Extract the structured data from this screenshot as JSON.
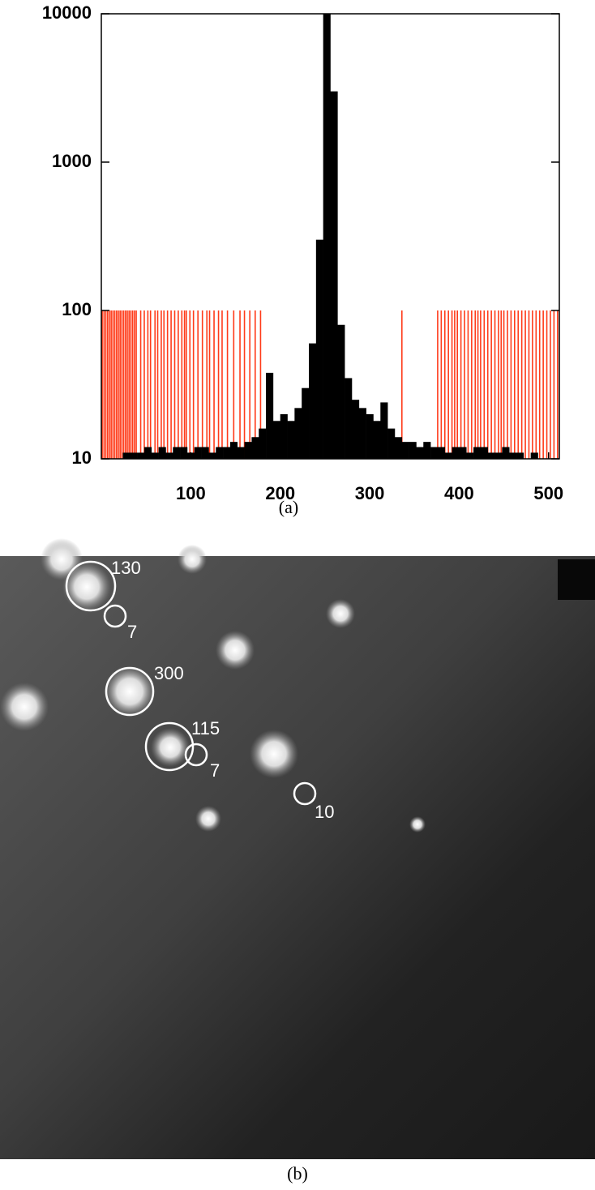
{
  "chart_data": {
    "type": "histogram",
    "bins": [
      0,
      8,
      16,
      24,
      32,
      40,
      48,
      56,
      64,
      72,
      80,
      88,
      96,
      104,
      112,
      120,
      128,
      136,
      144,
      152,
      160,
      168,
      176,
      184,
      192,
      200,
      208,
      216,
      224,
      232,
      240,
      248,
      256,
      264,
      272,
      280,
      288,
      296,
      304,
      312,
      320,
      328,
      336,
      344,
      352,
      360,
      368,
      376,
      384,
      392,
      400,
      408,
      416,
      424,
      432,
      440,
      448,
      456,
      464,
      472,
      480,
      488,
      496,
      504,
      512
    ],
    "counts": [
      10,
      10,
      10,
      11,
      11,
      11,
      12,
      11,
      12,
      11,
      12,
      12,
      11,
      12,
      12,
      11,
      12,
      12,
      13,
      12,
      13,
      14,
      16,
      38,
      18,
      20,
      18,
      22,
      30,
      60,
      300,
      10000,
      3000,
      80,
      35,
      25,
      22,
      20,
      18,
      24,
      16,
      14,
      13,
      13,
      12,
      13,
      12,
      12,
      11,
      12,
      12,
      11,
      12,
      12,
      11,
      11,
      12,
      11,
      11,
      10,
      11,
      10,
      10,
      10
    ],
    "color": "#000000",
    "threshold_lines": {
      "color": "#ff3b1a",
      "x": [
        1,
        3,
        5,
        7,
        9,
        11,
        13,
        15,
        17,
        19,
        21,
        23,
        25,
        27,
        29,
        31,
        33,
        35,
        37,
        39,
        44,
        48,
        52,
        55,
        60,
        63,
        67,
        70,
        74,
        78,
        82,
        86,
        90,
        93,
        95,
        99,
        103,
        108,
        113,
        118,
        121,
        126,
        131,
        135,
        141,
        148,
        155,
        160,
        166,
        172,
        178,
        336,
        376,
        380,
        384,
        388,
        392,
        395,
        398,
        402,
        406,
        410,
        414,
        418,
        421,
        424,
        428,
        432,
        436,
        440,
        444,
        447,
        450,
        454,
        458,
        462,
        466,
        470,
        474,
        478,
        482,
        486,
        490,
        494,
        498,
        502,
        506,
        510
      ],
      "values": [
        100,
        100,
        100,
        100,
        100,
        100,
        100,
        100,
        100,
        100,
        100,
        100,
        100,
        100,
        100,
        100,
        100,
        100,
        100,
        100,
        100,
        100,
        100,
        100,
        100,
        100,
        100,
        100,
        100,
        100,
        100,
        100,
        100,
        100,
        100,
        100,
        100,
        100,
        100,
        100,
        100,
        100,
        100,
        100,
        100,
        100,
        100,
        100,
        100,
        100,
        100,
        100,
        100,
        100,
        100,
        100,
        100,
        100,
        100,
        100,
        100,
        100,
        100,
        100,
        100,
        100,
        100,
        100,
        100,
        100,
        100,
        100,
        100,
        100,
        100,
        100,
        100,
        100,
        100,
        100,
        100,
        100,
        100,
        100,
        100,
        100,
        100,
        100
      ]
    },
    "xlim": [
      0,
      512
    ],
    "xticks": [
      100,
      200,
      300,
      400,
      500
    ],
    "ylim": [
      10,
      10000
    ],
    "yticks": [
      10,
      100,
      1000,
      10000
    ],
    "log_scale_y": true,
    "caption": "(a)"
  },
  "panel_b": {
    "caption": "(b)",
    "annotations": [
      130,
      7,
      300,
      115,
      7,
      10
    ]
  }
}
